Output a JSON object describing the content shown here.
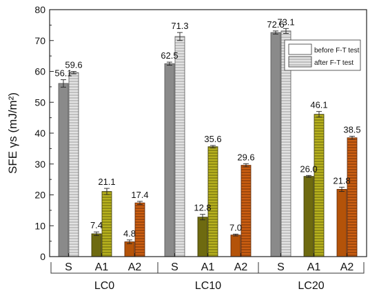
{
  "chart_data": {
    "type": "bar",
    "ylabel": "SFE γs (mJ/m²)",
    "ylim": [
      0,
      80
    ],
    "yticks": [
      0,
      10,
      20,
      30,
      40,
      50,
      60,
      70,
      80
    ],
    "groups": [
      "LC0",
      "LC10",
      "LC20"
    ],
    "subcategories": [
      "S",
      "A1",
      "A2"
    ],
    "legend_position": "top-right",
    "legend": [
      {
        "label": "before F-T test",
        "pattern": "blank"
      },
      {
        "label": "after F-T test",
        "pattern": "horizontal-lines"
      }
    ],
    "series": [
      {
        "name": "before F-T test",
        "values": [
          56.1,
          7.4,
          4.8,
          62.5,
          12.8,
          7.0,
          72.6,
          26.0,
          21.8
        ],
        "labels": [
          "56.1",
          "7.4",
          "4.8",
          "62.5",
          "12.8",
          "7.0",
          "72.6",
          "26.0",
          "21.8"
        ],
        "errors": [
          1.2,
          0.6,
          0.6,
          0.5,
          0.9,
          0.3,
          0.5,
          0.3,
          0.7
        ]
      },
      {
        "name": "after F-T test",
        "values": [
          59.6,
          21.1,
          17.4,
          71.3,
          35.6,
          29.6,
          73.1,
          46.1,
          38.5
        ],
        "labels": [
          "59.6",
          "21.1",
          "17.4",
          "71.3",
          "35.6",
          "29.6",
          "73.1",
          "46.1",
          "38.5"
        ],
        "errors": [
          0.4,
          1.0,
          0.5,
          1.3,
          0.4,
          0.5,
          0.8,
          0.9,
          0.5
        ]
      }
    ],
    "colors": {
      "S": {
        "before": "#8a8a8a",
        "after": "#d9d9d9"
      },
      "A1": {
        "before": "#6e6a10",
        "after": "#b2ae22"
      },
      "A2": {
        "before": "#b45309",
        "after": "#c75c14"
      }
    }
  }
}
